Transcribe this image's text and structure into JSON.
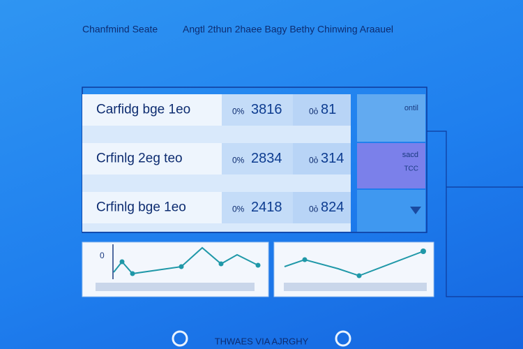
{
  "header": {
    "left": "Chanfmind Seate",
    "right": "Angtl  2thun 2haee Bagy Bethy  Chinwing Araauel"
  },
  "table": {
    "rows": [
      [
        "Carfidg bge 1eo",
        "0%",
        "3816",
        "0ỏ",
        "81"
      ],
      [
        "Crfinlg 2eg teo",
        "0%",
        "2834",
        "0ỏ",
        "314"
      ],
      [
        "Crfinlg bge 1eo",
        "0%",
        "2418",
        "0ỏ",
        "824"
      ]
    ]
  },
  "side_tiles": [
    "ontil",
    "sacd",
    "TCC"
  ],
  "chart_label": "0",
  "footer": "THWAES VIA AJRGHY"
}
